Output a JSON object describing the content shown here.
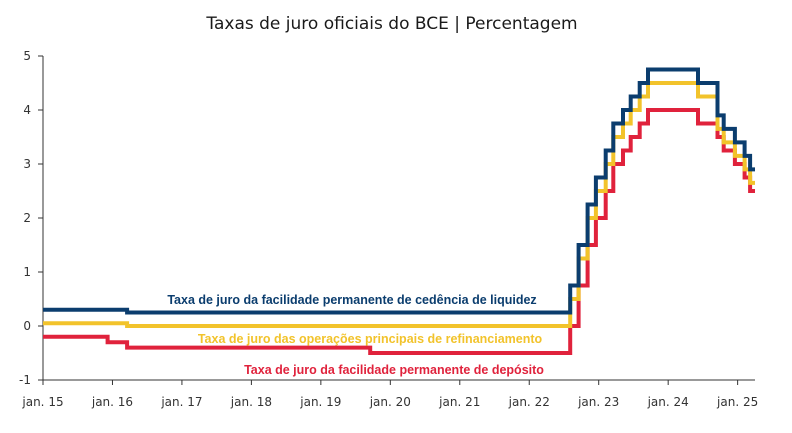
{
  "chart_data": {
    "type": "line",
    "step": true,
    "title": "Taxas de juro oficiais do BCE | Percentagem",
    "xlabel": "",
    "ylabel": "",
    "xlim": [
      2015.0,
      2025.25
    ],
    "ylim": [
      -1,
      5
    ],
    "yticks": [
      -1,
      0,
      1,
      2,
      3,
      4,
      5
    ],
    "xticks": [
      {
        "label": "jan. 15",
        "value": 2015
      },
      {
        "label": "jan. 16",
        "value": 2016
      },
      {
        "label": "jan. 17",
        "value": 2017
      },
      {
        "label": "jan. 18",
        "value": 2018
      },
      {
        "label": "jan. 19",
        "value": 2019
      },
      {
        "label": "jan. 20",
        "value": 2020
      },
      {
        "label": "jan. 21",
        "value": 2021
      },
      {
        "label": "jan. 22",
        "value": 2022
      },
      {
        "label": "jan. 23",
        "value": 2023
      },
      {
        "label": "jan. 24",
        "value": 2024
      },
      {
        "label": "jan. 25",
        "value": 2025
      }
    ],
    "series": [
      {
        "name": "Taxa de juro da facilidade permanente de cedência de liquidez",
        "color": "#0b3d6e",
        "points": [
          [
            2015.0,
            0.3
          ],
          [
            2016.21,
            0.25
          ],
          [
            2022.59,
            0.75
          ],
          [
            2022.71,
            1.5
          ],
          [
            2022.84,
            2.25
          ],
          [
            2022.96,
            2.75
          ],
          [
            2023.1,
            3.25
          ],
          [
            2023.21,
            3.75
          ],
          [
            2023.35,
            4.0
          ],
          [
            2023.46,
            4.25
          ],
          [
            2023.59,
            4.5
          ],
          [
            2023.71,
            4.75
          ],
          [
            2024.43,
            4.5
          ],
          [
            2024.71,
            3.9
          ],
          [
            2024.8,
            3.65
          ],
          [
            2024.96,
            3.4
          ],
          [
            2025.1,
            3.15
          ],
          [
            2025.18,
            2.9
          ]
        ]
      },
      {
        "name": "Taxa de juro das operações principais de refinanciamento",
        "color": "#f2c32b",
        "points": [
          [
            2015.0,
            0.05
          ],
          [
            2016.21,
            0.0
          ],
          [
            2022.59,
            0.5
          ],
          [
            2022.71,
            1.25
          ],
          [
            2022.84,
            2.0
          ],
          [
            2022.96,
            2.5
          ],
          [
            2023.1,
            3.0
          ],
          [
            2023.21,
            3.5
          ],
          [
            2023.35,
            3.75
          ],
          [
            2023.46,
            4.0
          ],
          [
            2023.59,
            4.25
          ],
          [
            2023.71,
            4.5
          ],
          [
            2024.43,
            4.25
          ],
          [
            2024.71,
            3.65
          ],
          [
            2024.8,
            3.4
          ],
          [
            2024.96,
            3.15
          ],
          [
            2025.1,
            2.9
          ],
          [
            2025.18,
            2.65
          ]
        ]
      },
      {
        "name": "Taxa de juro da facilidade permanente de depósito",
        "color": "#e0223c",
        "points": [
          [
            2015.0,
            -0.2
          ],
          [
            2015.93,
            -0.3
          ],
          [
            2016.21,
            -0.4
          ],
          [
            2019.71,
            -0.5
          ],
          [
            2022.59,
            0.0
          ],
          [
            2022.71,
            0.75
          ],
          [
            2022.84,
            1.5
          ],
          [
            2022.96,
            2.0
          ],
          [
            2023.1,
            2.5
          ],
          [
            2023.21,
            3.0
          ],
          [
            2023.35,
            3.25
          ],
          [
            2023.46,
            3.5
          ],
          [
            2023.59,
            3.75
          ],
          [
            2023.71,
            4.0
          ],
          [
            2024.43,
            3.75
          ],
          [
            2024.71,
            3.5
          ],
          [
            2024.8,
            3.25
          ],
          [
            2024.96,
            3.0
          ],
          [
            2025.1,
            2.75
          ],
          [
            2025.18,
            2.5
          ]
        ]
      }
    ],
    "annotations": [
      {
        "text": "Taxa de juro da facilidade permanente de cedência de liquidez",
        "color": "#0b3d6e"
      },
      {
        "text": "Taxa de juro das operações principais de refinanciamento",
        "color": "#f2c32b"
      },
      {
        "text": "Taxa de juro da facilidade permanente de depósito",
        "color": "#e0223c"
      }
    ]
  }
}
